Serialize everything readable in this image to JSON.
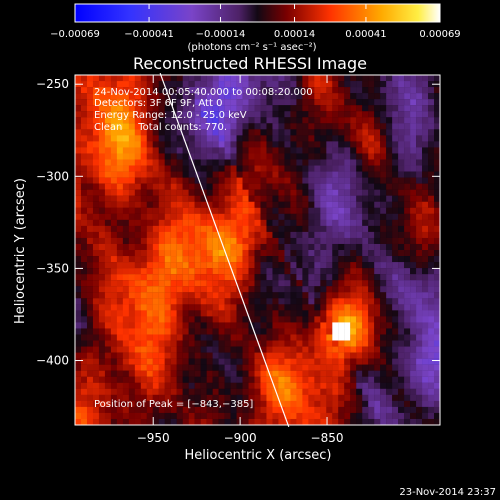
{
  "chart_data": {
    "type": "heatmap",
    "title": "Reconstructed RHESSI Image",
    "xlabel": "Heliocentric X (arcsec)",
    "ylabel": "Heliocentric Y (arcsec)",
    "xlim": [
      -995,
      -785
    ],
    "ylim": [
      -435,
      -245
    ],
    "x_ticks": [
      -950,
      -900,
      -850
    ],
    "y_ticks": [
      -250,
      -300,
      -350,
      -400
    ],
    "x_tick_labels": [
      "−950",
      "−900",
      "−850"
    ],
    "y_tick_labels": [
      "−250",
      "−300",
      "−350",
      "−400"
    ],
    "colorbar": {
      "min": -0.00069,
      "max": 0.00069,
      "ticks": [
        -0.00069,
        -0.00041,
        -0.00014,
        0.00014,
        0.00041,
        0.00069
      ],
      "tick_labels": [
        "−0.00069",
        "−0.00041",
        "−0.00014",
        "0.00014",
        "0.00041",
        "0.00069"
      ],
      "label": "(photons cm⁻² s⁻¹ asec⁻²)"
    },
    "annotations": {
      "time_range": "24-Nov-2014 00:05:40.000 to 00:08:20.000",
      "detectors": "Detectors: 3F 6F 9F, Att 0",
      "energy_range": "Energy Range: 12.0 - 25.0 keV",
      "counts": "Clean     Total counts: 770.",
      "peak": "Position of Peak = [−843,−385]"
    },
    "limb_line": {
      "points": [
        [
          -946,
          -244
        ],
        [
          -872,
          -436
        ]
      ]
    },
    "timestamp": "23-Nov-2014 23:37",
    "grid": false,
    "legend": "none"
  },
  "colors": {
    "background": "#000000",
    "text": "#ffffff",
    "cmap_blue": "#0000ff",
    "cmap_violet": "#6633cc",
    "cmap_purple": "#552277",
    "cmap_dark": "#120814",
    "cmap_red": "#d02000",
    "cmap_orange": "#ff7a00",
    "cmap_yellow": "#ffd000",
    "cmap_white": "#fffff0"
  }
}
